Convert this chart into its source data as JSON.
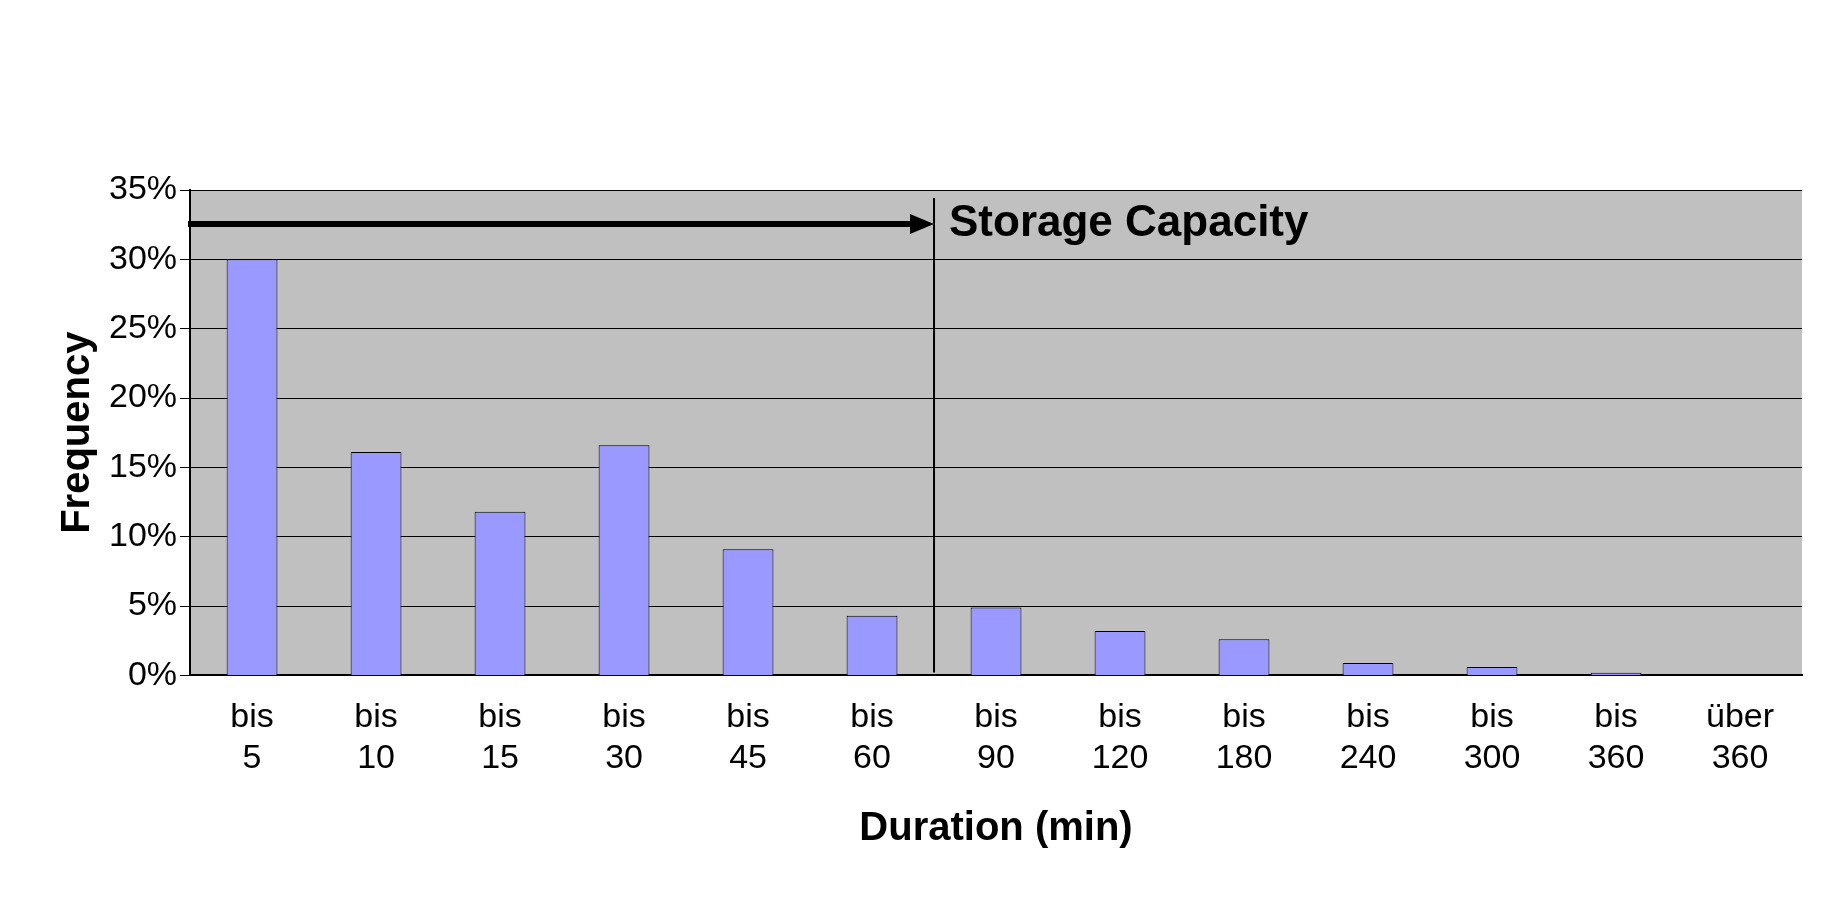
{
  "chart_data": {
    "type": "bar",
    "xlabel": "Duration (min)",
    "ylabel": "Frequency",
    "categories": [
      "bis 5",
      "bis 10",
      "bis 15",
      "bis 30",
      "bis 45",
      "bis 60",
      "bis 90",
      "bis 120",
      "bis 180",
      "bis 240",
      "bis 300",
      "bis 360",
      "über 360"
    ],
    "values": [
      30,
      16.1,
      11.8,
      16.6,
      9.1,
      4.3,
      4.9,
      3.2,
      2.6,
      0.9,
      0.6,
      0.2,
      0
    ],
    "color": "#9999ff",
    "ylim": [
      0,
      35
    ],
    "yticks": [
      {
        "value": 0,
        "label": "0%"
      },
      {
        "value": 5,
        "label": "5%"
      },
      {
        "value": 10,
        "label": "10%"
      },
      {
        "value": 15,
        "label": "15%"
      },
      {
        "value": 20,
        "label": "20%"
      },
      {
        "value": 25,
        "label": "25%"
      },
      {
        "value": 30,
        "label": "30%"
      },
      {
        "value": 35,
        "label": "35%"
      }
    ],
    "grid": "y",
    "ref_lines": [
      {
        "axis": "x",
        "value": "bis 60",
        "label": "Storage Capacity",
        "color": "#000000"
      }
    ]
  }
}
